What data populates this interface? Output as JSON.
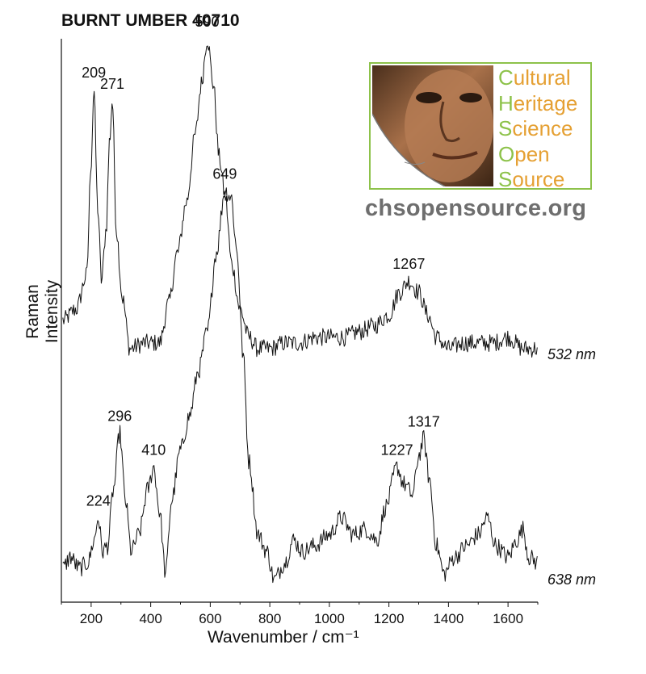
{
  "title": "BURNT UMBER 40710",
  "logo": {
    "lines": [
      {
        "first": "C",
        "rest": "ultural"
      },
      {
        "first": "H",
        "rest": "eritage"
      },
      {
        "first": "S",
        "rest": "cience"
      },
      {
        "first": "O",
        "rest": "pen"
      },
      {
        "first": "S",
        "rest": "ource"
      }
    ],
    "url": "chsopensource.org",
    "colors": {
      "green": "#8dc24a",
      "orange": "#e5a033",
      "url_gray": "#6e6e6e"
    }
  },
  "chart_data": {
    "type": "line",
    "title": "BURNT UMBER 40710",
    "xlabel": "Wavenumber / cm⁻¹",
    "ylabel": "Raman Intensity",
    "xlim": [
      100,
      1700
    ],
    "ylim": [
      0,
      100
    ],
    "x_ticks": [
      200,
      400,
      600,
      800,
      1000,
      1200,
      1400,
      1600
    ],
    "y_ticks_shown": false,
    "grid": false,
    "legend": "none",
    "series": [
      {
        "name": "532 nm",
        "line_color": "#111111",
        "baseline": 44,
        "noise": 1.6,
        "points": [
          [
            105,
            50
          ],
          [
            150,
            52
          ],
          [
            185,
            58
          ],
          [
            200,
            78
          ],
          [
            209,
            91
          ],
          [
            222,
            70
          ],
          [
            235,
            57
          ],
          [
            250,
            66
          ],
          [
            262,
            82
          ],
          [
            271,
            89
          ],
          [
            285,
            66
          ],
          [
            305,
            54
          ],
          [
            330,
            45
          ],
          [
            380,
            46
          ],
          [
            430,
            46
          ],
          [
            460,
            53
          ],
          [
            490,
            62
          ],
          [
            520,
            71
          ],
          [
            550,
            83
          ],
          [
            570,
            92
          ],
          [
            590,
            100
          ],
          [
            610,
            92
          ],
          [
            630,
            79
          ],
          [
            650,
            72
          ],
          [
            672,
            60
          ],
          [
            700,
            52
          ],
          [
            730,
            47
          ],
          [
            760,
            45
          ],
          [
            800,
            45
          ],
          [
            850,
            46
          ],
          [
            900,
            46
          ],
          [
            950,
            47
          ],
          [
            1000,
            47
          ],
          [
            1050,
            47
          ],
          [
            1100,
            48
          ],
          [
            1150,
            49
          ],
          [
            1200,
            51
          ],
          [
            1235,
            55
          ],
          [
            1267,
            57
          ],
          [
            1300,
            55
          ],
          [
            1330,
            51
          ],
          [
            1360,
            47
          ],
          [
            1400,
            45
          ],
          [
            1450,
            46
          ],
          [
            1500,
            46
          ],
          [
            1550,
            46
          ],
          [
            1600,
            47
          ],
          [
            1650,
            45
          ],
          [
            1700,
            45
          ]
        ],
        "peak_labels": [
          {
            "x": 209,
            "label": "209"
          },
          {
            "x": 271,
            "label": "271"
          },
          {
            "x": 590,
            "label": "590"
          },
          {
            "x": 1267,
            "label": "1267"
          }
        ]
      },
      {
        "name": "638 nm",
        "line_color": "#111111",
        "baseline": 4,
        "noise": 1.6,
        "points": [
          [
            105,
            6
          ],
          [
            130,
            8
          ],
          [
            160,
            6
          ],
          [
            190,
            7
          ],
          [
            210,
            11
          ],
          [
            224,
            15
          ],
          [
            238,
            9
          ],
          [
            255,
            10
          ],
          [
            275,
            20
          ],
          [
            296,
            30
          ],
          [
            315,
            18
          ],
          [
            335,
            9
          ],
          [
            360,
            12
          ],
          [
            390,
            20
          ],
          [
            410,
            24
          ],
          [
            430,
            16
          ],
          [
            450,
            5
          ],
          [
            470,
            18
          ],
          [
            500,
            27
          ],
          [
            530,
            33
          ],
          [
            560,
            41
          ],
          [
            590,
            48
          ],
          [
            620,
            62
          ],
          [
            649,
            73
          ],
          [
            670,
            72
          ],
          [
            690,
            62
          ],
          [
            710,
            44
          ],
          [
            730,
            25
          ],
          [
            760,
            12
          ],
          [
            790,
            9
          ],
          [
            815,
            4
          ],
          [
            850,
            7
          ],
          [
            880,
            11
          ],
          [
            910,
            9
          ],
          [
            950,
            10
          ],
          [
            1000,
            12
          ],
          [
            1040,
            15
          ],
          [
            1080,
            12
          ],
          [
            1120,
            13
          ],
          [
            1160,
            11
          ],
          [
            1190,
            17
          ],
          [
            1227,
            24
          ],
          [
            1250,
            21
          ],
          [
            1280,
            19
          ],
          [
            1300,
            26
          ],
          [
            1317,
            29
          ],
          [
            1335,
            22
          ],
          [
            1360,
            10
          ],
          [
            1385,
            5
          ],
          [
            1420,
            8
          ],
          [
            1460,
            10
          ],
          [
            1500,
            12
          ],
          [
            1530,
            15
          ],
          [
            1560,
            10
          ],
          [
            1600,
            8
          ],
          [
            1630,
            11
          ],
          [
            1650,
            13
          ],
          [
            1670,
            8
          ],
          [
            1700,
            7
          ]
        ],
        "peak_labels": [
          {
            "x": 224,
            "label": "224"
          },
          {
            "x": 296,
            "label": "296"
          },
          {
            "x": 410,
            "label": "410"
          },
          {
            "x": 649,
            "label": "649"
          },
          {
            "x": 1227,
            "label": "1227"
          },
          {
            "x": 1317,
            "label": "1317"
          }
        ]
      }
    ]
  }
}
